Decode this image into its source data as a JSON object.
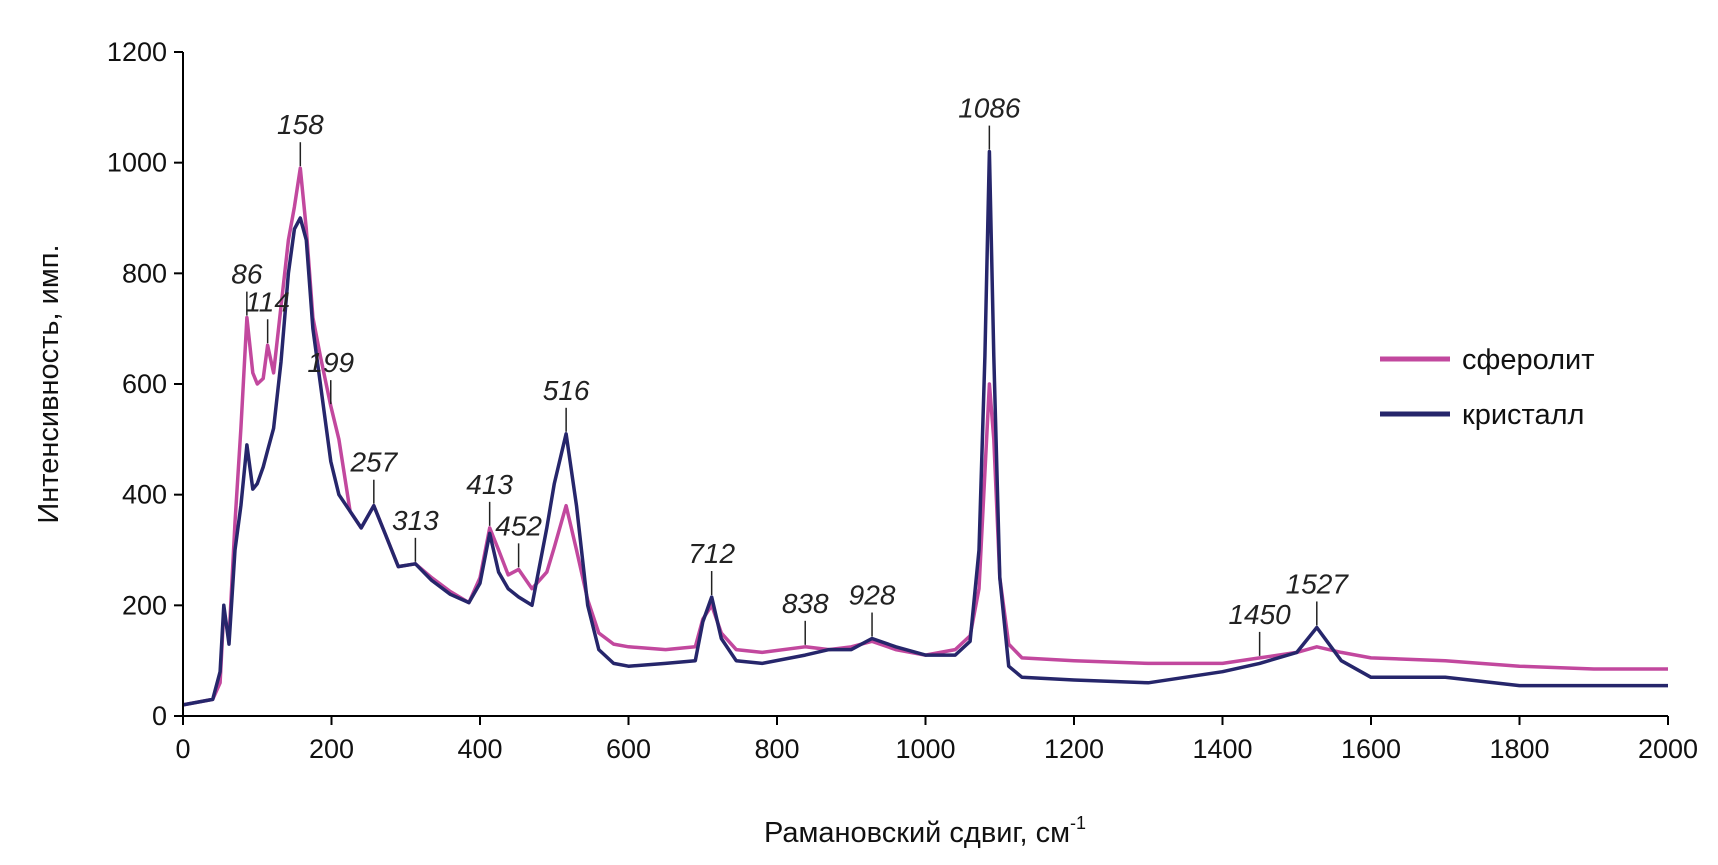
{
  "chart_data": {
    "type": "line",
    "xlabel": "Рамановский сдвиг, см",
    "xlabel_sup": "-1",
    "ylabel": "Интенсивность, имп.",
    "xlim": [
      0,
      2000
    ],
    "ylim": [
      0,
      1200
    ],
    "x_ticks": [
      0,
      200,
      400,
      600,
      800,
      1000,
      1200,
      1400,
      1600,
      1800,
      2000
    ],
    "y_ticks": [
      0,
      200,
      400,
      600,
      800,
      1000,
      1200
    ],
    "grid": false,
    "legend_position": "right",
    "series": [
      {
        "name": "сферолит",
        "color": "#c2489e",
        "x": [
          0,
          40,
          50,
          55,
          62,
          70,
          78,
          86,
          94,
          100,
          108,
          114,
          122,
          132,
          142,
          150,
          158,
          166,
          175,
          185,
          199,
          210,
          225,
          240,
          257,
          272,
          290,
          313,
          335,
          360,
          385,
          400,
          413,
          425,
          438,
          452,
          470,
          490,
          500,
          516,
          530,
          545,
          560,
          580,
          600,
          650,
          690,
          700,
          712,
          725,
          745,
          780,
          838,
          870,
          900,
          928,
          960,
          1000,
          1040,
          1060,
          1072,
          1080,
          1086,
          1092,
          1100,
          1112,
          1130,
          1200,
          1300,
          1400,
          1450,
          1500,
          1527,
          1560,
          1600,
          1700,
          1800,
          1900,
          2000
        ],
        "y": [
          20,
          30,
          60,
          190,
          140,
          350,
          520,
          720,
          620,
          600,
          610,
          670,
          620,
          740,
          860,
          920,
          990,
          880,
          720,
          650,
          560,
          500,
          370,
          340,
          380,
          330,
          270,
          275,
          250,
          225,
          205,
          250,
          340,
          300,
          255,
          265,
          230,
          260,
          305,
          380,
          300,
          210,
          150,
          130,
          125,
          120,
          125,
          175,
          200,
          150,
          120,
          115,
          125,
          120,
          125,
          135,
          120,
          110,
          120,
          145,
          230,
          440,
          600,
          500,
          250,
          130,
          105,
          100,
          95,
          95,
          105,
          115,
          125,
          115,
          105,
          100,
          90,
          85,
          85
        ]
      },
      {
        "name": "кристалл",
        "color": "#26266b",
        "x": [
          0,
          40,
          50,
          55,
          62,
          70,
          78,
          86,
          94,
          100,
          108,
          114,
          122,
          132,
          142,
          150,
          158,
          166,
          175,
          185,
          199,
          210,
          225,
          240,
          257,
          272,
          290,
          313,
          335,
          360,
          385,
          400,
          413,
          425,
          438,
          452,
          470,
          490,
          500,
          516,
          530,
          545,
          560,
          580,
          600,
          650,
          690,
          700,
          712,
          725,
          745,
          780,
          838,
          870,
          900,
          928,
          960,
          1000,
          1040,
          1060,
          1072,
          1080,
          1086,
          1092,
          1100,
          1112,
          1130,
          1200,
          1300,
          1400,
          1450,
          1500,
          1527,
          1560,
          1600,
          1700,
          1800,
          1900,
          2000
        ],
        "y": [
          20,
          30,
          80,
          200,
          130,
          300,
          380,
          490,
          410,
          420,
          450,
          480,
          520,
          640,
          800,
          880,
          900,
          860,
          700,
          600,
          460,
          400,
          370,
          340,
          380,
          330,
          270,
          275,
          245,
          220,
          205,
          240,
          330,
          260,
          230,
          215,
          200,
          340,
          420,
          510,
          380,
          200,
          120,
          95,
          90,
          95,
          100,
          170,
          215,
          140,
          100,
          95,
          110,
          120,
          120,
          140,
          125,
          110,
          110,
          135,
          300,
          650,
          1020,
          650,
          250,
          90,
          70,
          65,
          60,
          80,
          95,
          115,
          160,
          100,
          70,
          70,
          55,
          55,
          55
        ]
      }
    ],
    "annotations": [
      {
        "x": 86,
        "label": "86"
      },
      {
        "x": 114,
        "label": "114"
      },
      {
        "x": 158,
        "label": "158"
      },
      {
        "x": 199,
        "label": "199"
      },
      {
        "x": 257,
        "label": "257"
      },
      {
        "x": 313,
        "label": "313"
      },
      {
        "x": 413,
        "label": "413"
      },
      {
        "x": 452,
        "label": "452"
      },
      {
        "x": 516,
        "label": "516"
      },
      {
        "x": 712,
        "label": "712"
      },
      {
        "x": 838,
        "label": "838"
      },
      {
        "x": 928,
        "label": "928"
      },
      {
        "x": 1086,
        "label": "1086"
      },
      {
        "x": 1450,
        "label": "1450"
      },
      {
        "x": 1527,
        "label": "1527"
      }
    ]
  }
}
